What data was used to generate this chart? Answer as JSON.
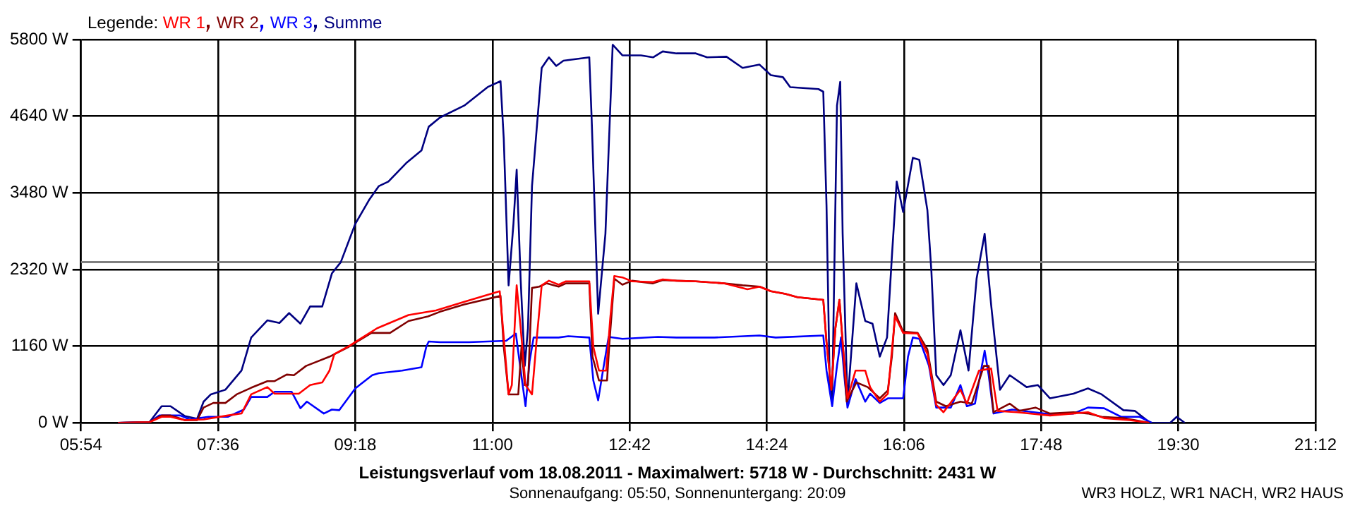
{
  "chart_data": {
    "type": "line",
    "title": "Leistungsverlauf vom 18.08.2011 - Maximalwert: 5718 W - Durchschnitt: 2431 W",
    "subtitle": "Sonnenaufgang: 05:50, Sonnenuntergang: 20:09",
    "annotations": [
      "WR3 HOLZ, WR1 NACH, WR2 HAUS"
    ],
    "legend_title": "Legende:",
    "legend": "top left",
    "grid": true,
    "xlim": [
      5.9,
      21.2
    ],
    "xticks": [
      {
        "value": 5.9,
        "label": "05:54"
      },
      {
        "value": 7.6,
        "label": "07:36"
      },
      {
        "value": 9.3,
        "label": "09:18"
      },
      {
        "value": 11.0,
        "label": "11:00"
      },
      {
        "value": 12.7,
        "label": "12:42"
      },
      {
        "value": 14.4,
        "label": "14:24"
      },
      {
        "value": 16.1,
        "label": "16:06"
      },
      {
        "value": 17.8,
        "label": "17:48"
      },
      {
        "value": 19.5,
        "label": "19:30"
      },
      {
        "value": 21.2,
        "label": "21:12"
      }
    ],
    "ylim": [
      0,
      5800
    ],
    "yticks": [
      {
        "value": 0,
        "label": "0 W"
      },
      {
        "value": 1160,
        "label": "1160 W"
      },
      {
        "value": 2320,
        "label": "2320 W"
      },
      {
        "value": 3480,
        "label": "3480 W"
      },
      {
        "value": 4640,
        "label": "4640 W"
      },
      {
        "value": 5800,
        "label": "5800 W"
      }
    ],
    "ref_lines": [
      {
        "axis": "y",
        "value": 2431,
        "color": "#808080"
      }
    ],
    "series": [
      {
        "name": "WR 1",
        "color": "#ff0000",
        "x": [
          6.36,
          6.75,
          6.9,
          7.01,
          7.19,
          7.42,
          7.72,
          7.89,
          8.01,
          8.21,
          8.3,
          8.48,
          8.6,
          8.74,
          8.89,
          8.98,
          9.04,
          9.22,
          9.57,
          9.96,
          10.3,
          10.65,
          11.09,
          11.12,
          11.2,
          11.24,
          11.3,
          11.35,
          11.41,
          11.49,
          11.55,
          11.61,
          11.7,
          11.82,
          11.91,
          12.2,
          12.25,
          12.32,
          12.41,
          12.46,
          12.51,
          12.61,
          12.73,
          12.99,
          13.11,
          13.28,
          13.52,
          13.87,
          14.16,
          14.31,
          14.45,
          14.63,
          14.78,
          15.1,
          15.14,
          15.2,
          15.25,
          15.3,
          15.34,
          15.4,
          15.5,
          15.62,
          15.68,
          15.8,
          15.9,
          15.99,
          16.09,
          16.27,
          16.39,
          16.5,
          16.59,
          16.8,
          16.88,
          17.03,
          17.18,
          17.26,
          17.5,
          17.91,
          18.38,
          18.58,
          18.9,
          19.14
        ],
        "values": [
          0,
          10,
          90,
          90,
          40,
          50,
          110,
          140,
          430,
          540,
          440,
          440,
          440,
          570,
          610,
          790,
          1040,
          1160,
          1430,
          1630,
          1700,
          1830,
          1990,
          1580,
          430,
          570,
          2080,
          1430,
          570,
          430,
          1290,
          2080,
          2150,
          2090,
          2140,
          2140,
          1150,
          790,
          790,
          1580,
          2220,
          2200,
          2140,
          2130,
          2170,
          2150,
          2140,
          2110,
          2020,
          2060,
          1990,
          1950,
          1900,
          1860,
          1220,
          500,
          1430,
          1860,
          1220,
          370,
          790,
          790,
          540,
          320,
          440,
          1610,
          1360,
          1350,
          1040,
          270,
          160,
          500,
          290,
          790,
          820,
          180,
          160,
          110,
          160,
          70,
          40,
          0
        ]
      },
      {
        "name": "WR 2",
        "color": "#800000",
        "x": [
          6.36,
          6.75,
          6.9,
          7.01,
          7.19,
          7.34,
          7.42,
          7.54,
          7.69,
          7.83,
          8.01,
          8.21,
          8.3,
          8.45,
          8.54,
          8.69,
          8.98,
          9.22,
          9.5,
          9.73,
          9.96,
          10.2,
          10.35,
          10.65,
          11.1,
          11.14,
          11.2,
          11.32,
          11.36,
          11.4,
          11.44,
          11.49,
          11.58,
          11.67,
          11.82,
          11.91,
          12.2,
          12.24,
          12.32,
          12.42,
          12.45,
          12.51,
          12.61,
          12.73,
          12.99,
          13.11,
          13.28,
          13.52,
          13.87,
          14.1,
          14.31,
          14.45,
          14.63,
          14.78,
          15.1,
          15.14,
          15.2,
          15.25,
          15.3,
          15.34,
          15.39,
          15.51,
          15.65,
          15.8,
          15.9,
          15.95,
          15.99,
          16.09,
          16.27,
          16.39,
          16.5,
          16.62,
          16.8,
          16.94,
          17.09,
          17.15,
          17.21,
          17.41,
          17.53,
          17.73,
          17.91,
          18.2,
          18.38,
          18.55,
          18.82,
          19.14
        ],
        "values": [
          0,
          10,
          110,
          110,
          40,
          40,
          230,
          300,
          300,
          430,
          530,
          630,
          630,
          730,
          720,
          860,
          1000,
          1150,
          1360,
          1360,
          1540,
          1610,
          1680,
          1790,
          1920,
          1150,
          430,
          430,
          1150,
          570,
          570,
          2040,
          2060,
          2110,
          2060,
          2110,
          2110,
          1000,
          640,
          640,
          1220,
          2180,
          2090,
          2150,
          2110,
          2160,
          2150,
          2140,
          2110,
          2080,
          2060,
          1990,
          1950,
          1900,
          1860,
          1220,
          500,
          1430,
          1860,
          1220,
          320,
          610,
          540,
          370,
          490,
          1000,
          1660,
          1380,
          1360,
          1110,
          320,
          250,
          320,
          290,
          860,
          860,
          160,
          290,
          180,
          230,
          140,
          160,
          140,
          90,
          70,
          0
        ]
      },
      {
        "name": "WR 3",
        "color": "#0000ff",
        "x": [
          6.36,
          6.75,
          6.87,
          7.13,
          7.25,
          7.37,
          7.48,
          7.72,
          7.92,
          8.01,
          8.21,
          8.3,
          8.51,
          8.62,
          8.7,
          8.91,
          9.01,
          9.1,
          9.3,
          9.51,
          9.59,
          9.88,
          10.12,
          10.18,
          10.21,
          10.35,
          10.71,
          11.17,
          11.29,
          11.35,
          11.41,
          11.46,
          11.51,
          11.82,
          11.94,
          12.2,
          12.25,
          12.31,
          12.36,
          12.44,
          12.61,
          13.05,
          13.28,
          13.52,
          13.75,
          14.31,
          14.51,
          15.1,
          15.14,
          15.21,
          15.27,
          15.32,
          15.36,
          15.4,
          15.5,
          15.62,
          15.68,
          15.8,
          15.9,
          16.09,
          16.15,
          16.21,
          16.29,
          16.41,
          16.5,
          16.68,
          16.8,
          16.88,
          16.98,
          17.1,
          17.15,
          17.21,
          17.44,
          17.91,
          18.2,
          18.38,
          18.58,
          18.79,
          19.02,
          19.17
        ],
        "values": [
          0,
          10,
          110,
          110,
          50,
          70,
          90,
          90,
          200,
          390,
          390,
          470,
          470,
          220,
          320,
          140,
          200,
          190,
          520,
          720,
          750,
          790,
          840,
          1150,
          1230,
          1220,
          1220,
          1240,
          1350,
          790,
          250,
          930,
          1290,
          1290,
          1310,
          1290,
          640,
          340,
          720,
          1300,
          1270,
          1300,
          1290,
          1290,
          1290,
          1320,
          1290,
          1320,
          790,
          250,
          860,
          1290,
          720,
          230,
          660,
          320,
          440,
          300,
          370,
          370,
          1000,
          1290,
          1270,
          860,
          230,
          230,
          570,
          250,
          290,
          1090,
          720,
          140,
          200,
          130,
          140,
          230,
          220,
          90,
          90,
          0
        ]
      },
      {
        "name": "Summe",
        "color": "#000080",
        "x": [
          6.36,
          6.75,
          6.9,
          7.01,
          7.19,
          7.34,
          7.42,
          7.51,
          7.69,
          7.89,
          8.01,
          8.21,
          8.36,
          8.48,
          8.62,
          8.74,
          8.89,
          9.01,
          9.12,
          9.3,
          9.47,
          9.59,
          9.71,
          9.94,
          10.12,
          10.21,
          10.35,
          10.65,
          10.94,
          11.1,
          11.14,
          11.2,
          11.26,
          11.3,
          11.35,
          11.4,
          11.44,
          11.49,
          11.61,
          11.7,
          11.79,
          11.88,
          12.2,
          12.23,
          12.31,
          12.4,
          12.49,
          12.61,
          12.84,
          12.99,
          13.11,
          13.28,
          13.52,
          13.66,
          13.9,
          14.1,
          14.31,
          14.45,
          14.6,
          14.69,
          15.04,
          15.1,
          15.14,
          15.18,
          15.21,
          15.27,
          15.31,
          15.34,
          15.4,
          15.51,
          15.62,
          15.71,
          15.8,
          15.89,
          15.95,
          16.01,
          16.09,
          16.21,
          16.29,
          16.39,
          16.44,
          16.5,
          16.59,
          16.68,
          16.8,
          16.9,
          17.0,
          17.1,
          17.18,
          17.29,
          17.41,
          17.62,
          17.76,
          17.91,
          18.2,
          18.38,
          18.55,
          18.82,
          18.96,
          19.14,
          19.17,
          19.4,
          19.48,
          19.58
        ],
        "values": [
          0,
          10,
          250,
          250,
          100,
          60,
          320,
          430,
          500,
          790,
          1290,
          1550,
          1510,
          1660,
          1500,
          1760,
          1760,
          2260,
          2430,
          3010,
          3370,
          3580,
          3650,
          3940,
          4120,
          4480,
          4620,
          4800,
          5080,
          5170,
          4300,
          2080,
          3010,
          3830,
          2150,
          860,
          1430,
          3580,
          5370,
          5530,
          5400,
          5480,
          5530,
          4580,
          1650,
          2860,
          5720,
          5560,
          5560,
          5530,
          5620,
          5590,
          5590,
          5530,
          5540,
          5370,
          5420,
          5260,
          5230,
          5080,
          5050,
          5010,
          3290,
          570,
          290,
          4800,
          5160,
          2860,
          290,
          2110,
          1540,
          1500,
          1000,
          1290,
          2510,
          3650,
          3190,
          4010,
          3980,
          3220,
          2290,
          720,
          570,
          720,
          1400,
          790,
          2180,
          2860,
          1790,
          500,
          720,
          540,
          570,
          370,
          440,
          520,
          430,
          190,
          180,
          10,
          0,
          0,
          90,
          0
        ]
      }
    ]
  }
}
